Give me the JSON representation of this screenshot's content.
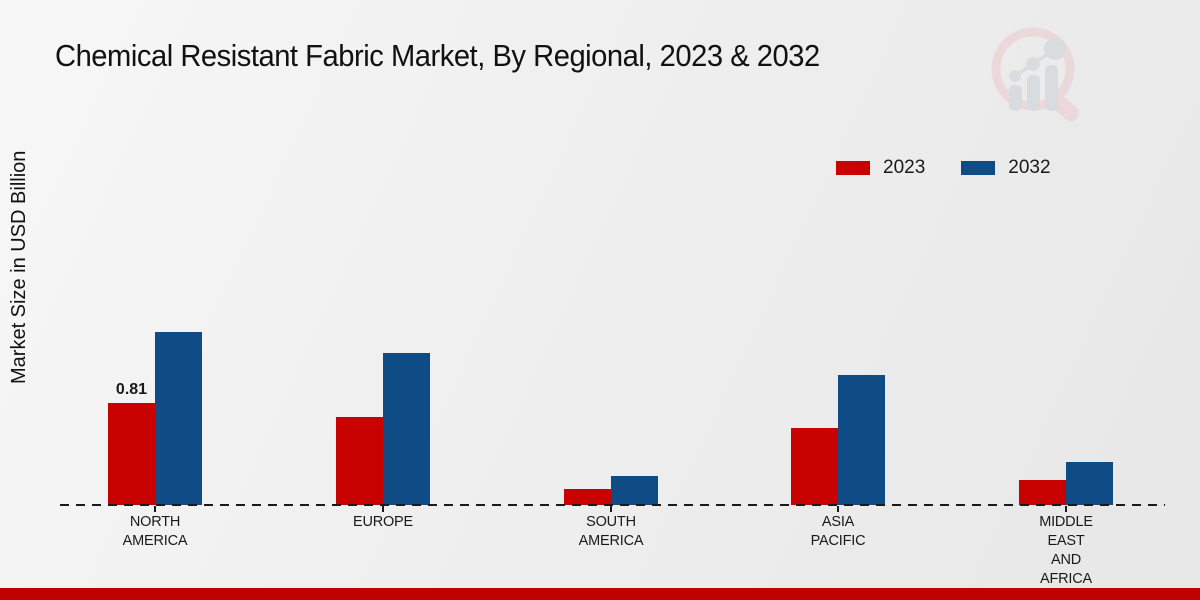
{
  "title": "Chemical Resistant Fabric Market, By Regional, 2023 & 2032",
  "ylabel": "Market Size in USD Billion",
  "icons": {
    "logo": "magnifier-bar-chart-watermark"
  },
  "colors": {
    "series_2023": "#c80101",
    "series_2032": "#0f4c86",
    "footer_band": "#c00000",
    "baseline": "#1a1a1a",
    "logo_ring": "#ecc9cd",
    "logo_bars": "#ccd1d7"
  },
  "legend": {
    "items": [
      {
        "label": "2023",
        "color": "#c80101"
      },
      {
        "label": "2032",
        "color": "#0f4c86"
      }
    ]
  },
  "chart_data": {
    "type": "bar",
    "title": "Chemical Resistant Fabric Market, By Regional, 2023 & 2032",
    "xlabel": "",
    "ylabel": "Market Size in USD Billion",
    "ylim": [
      0,
      1.6
    ],
    "grid": false,
    "legend_position": "top-right",
    "baseline_style": "dashed",
    "categories": [
      "NORTH AMERICA",
      "EUROPE",
      "SOUTH AMERICA",
      "ASIA PACIFIC",
      "MIDDLE EAST AND AFRICA"
    ],
    "category_lines": [
      [
        "NORTH",
        "AMERICA"
      ],
      [
        "EUROPE"
      ],
      [
        "SOUTH",
        "AMERICA"
      ],
      [
        "ASIA",
        "PACIFIC"
      ],
      [
        "MIDDLE",
        "EAST",
        "AND",
        "AFRICA"
      ]
    ],
    "series": [
      {
        "name": "2023",
        "color": "#c80101",
        "values": [
          0.81,
          0.7,
          0.13,
          0.61,
          0.2
        ]
      },
      {
        "name": "2032",
        "color": "#0f4c86",
        "values": [
          1.37,
          1.21,
          0.23,
          1.03,
          0.34
        ]
      }
    ],
    "value_labels": [
      {
        "series": 0,
        "category": 0,
        "text": "0.81"
      }
    ]
  }
}
